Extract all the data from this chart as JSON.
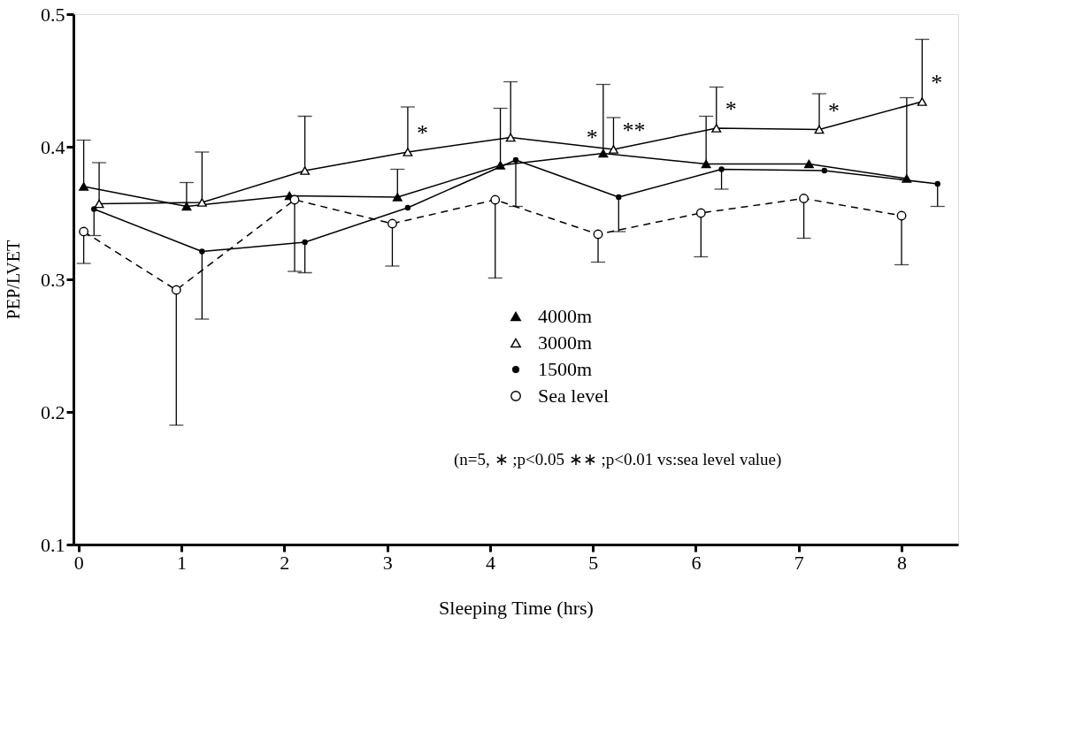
{
  "chart_data": {
    "type": "line",
    "xlabel": "Sleeping Time (hrs)",
    "ylabel": "PEP/LVET",
    "xlim": [
      -0.05,
      8.55
    ],
    "ylim": [
      0.1,
      0.5
    ],
    "xticks": [
      0,
      1,
      2,
      3,
      4,
      5,
      6,
      7,
      8
    ],
    "yticks": [
      0.1,
      0.2,
      0.3,
      0.4,
      0.5
    ],
    "grid": false,
    "legend": "center",
    "series": [
      {
        "name": "4000m",
        "color": "#000000",
        "marker": "triangle",
        "line_style": "solid",
        "x": [
          0.05,
          1.05,
          2.05,
          3.1,
          4.1,
          5.1,
          6.1,
          7.1,
          8.05
        ],
        "values": [
          0.37,
          0.355,
          0.363,
          0.362,
          0.386,
          0.395,
          0.387,
          0.387,
          0.376
        ],
        "errors": [
          [
            0.37,
            0.405
          ],
          [
            0.355,
            0.373
          ],
          null,
          [
            0.362,
            0.383
          ],
          [
            0.386,
            0.429
          ],
          [
            0.395,
            0.447
          ],
          [
            0.387,
            0.423
          ],
          null,
          [
            0.376,
            0.437
          ]
        ]
      },
      {
        "name": "3000m",
        "color": "#000000",
        "marker": "triangle",
        "line_style": "solid",
        "x": [
          0.2,
          1.2,
          2.2,
          3.2,
          4.2,
          5.2,
          6.2,
          7.2,
          8.2
        ],
        "values": [
          0.357,
          0.358,
          0.382,
          0.396,
          0.407,
          0.398,
          0.414,
          0.413,
          0.434
        ],
        "errors": [
          [
            0.357,
            0.388
          ],
          [
            0.358,
            0.396
          ],
          [
            0.382,
            0.423
          ],
          [
            0.396,
            0.43
          ],
          [
            0.407,
            0.449
          ],
          [
            0.398,
            0.422
          ],
          [
            0.414,
            0.445
          ],
          [
            0.413,
            0.44
          ],
          [
            0.434,
            0.481
          ]
        ]
      },
      {
        "name": "1500m",
        "color": "#000000",
        "marker": "circle",
        "line_style": "solid",
        "x": [
          0.15,
          1.2,
          2.2,
          3.2,
          4.25,
          5.25,
          6.25,
          7.25,
          8.35
        ],
        "values": [
          0.353,
          0.321,
          0.328,
          0.354,
          0.39,
          0.362,
          0.383,
          0.382,
          0.372
        ],
        "errors": [
          [
            0.333,
            0.353
          ],
          [
            0.27,
            0.321
          ],
          [
            0.305,
            0.328
          ],
          null,
          [
            0.355,
            0.39
          ],
          [
            0.336,
            0.362
          ],
          [
            0.368,
            0.383
          ],
          null,
          [
            0.355,
            0.372
          ]
        ]
      },
      {
        "name": "Sea level",
        "color": "#000000",
        "marker": "circle",
        "line_style": "dashed",
        "x": [
          0.05,
          0.95,
          2.1,
          3.05,
          4.05,
          5.05,
          6.05,
          7.05,
          8.0
        ],
        "values": [
          0.336,
          0.292,
          0.36,
          0.342,
          0.36,
          0.334,
          0.35,
          0.361,
          0.348
        ],
        "errors": [
          [
            0.312,
            0.336
          ],
          [
            0.19,
            0.292
          ],
          [
            0.306,
            0.36
          ],
          [
            0.31,
            0.342
          ],
          [
            0.301,
            0.36
          ],
          [
            0.313,
            0.334
          ],
          [
            0.317,
            0.35
          ],
          [
            0.331,
            0.361
          ],
          [
            0.311,
            0.348
          ]
        ]
      }
    ],
    "annotations": [
      {
        "text": "*",
        "x": 3.2,
        "y": 0.396
      },
      {
        "text": "*",
        "x": 4.85,
        "y": 0.393
      },
      {
        "text": "**",
        "x": 5.2,
        "y": 0.398
      },
      {
        "text": "*",
        "x": 6.2,
        "y": 0.414
      },
      {
        "text": "*",
        "x": 7.2,
        "y": 0.413
      },
      {
        "text": "*",
        "x": 8.2,
        "y": 0.434
      },
      "(n=5, ∗ ;p<0.05  ∗∗ ;p<0.01 vs:sea level value)"
    ]
  }
}
